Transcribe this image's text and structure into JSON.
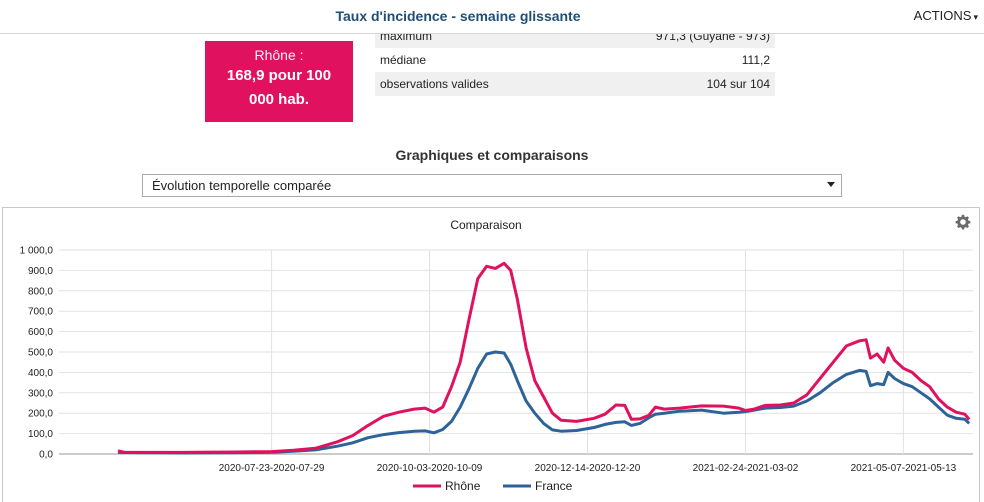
{
  "header": {
    "title": "Taux d'incidence - semaine glissante",
    "actions_label": "ACTIONS"
  },
  "badge": {
    "title": "Rhône :",
    "value_line1": "168,9 pour 100",
    "value_line2": "000 hab."
  },
  "stats": {
    "rows": [
      {
        "label": "maximum",
        "value": "971,3 (Guyane - 973)"
      },
      {
        "label": "médiane",
        "value": "111,2"
      },
      {
        "label": "observations valides",
        "value": "104 sur 104"
      }
    ]
  },
  "section": {
    "title": "Graphiques et comparaisons"
  },
  "selector": {
    "selected": "Évolution temporelle comparée"
  },
  "colors": {
    "accent": "#e0115f",
    "title_blue": "#1f4e79",
    "series_rhone": "#e0115f",
    "series_france": "#2e6399"
  },
  "chart_data": {
    "type": "line",
    "title": "Comparaison",
    "xlabel": "",
    "ylabel": "",
    "ylim": [
      0,
      1000
    ],
    "yticks": [
      "0,0",
      "100,0",
      "200,0",
      "300,0",
      "400,0",
      "500,0",
      "600,0",
      "700,0",
      "800,0",
      "900,0",
      "1 000,0"
    ],
    "xticks": [
      "2020-07-23-2020-07-29",
      "2020-10-03-2020-10-09",
      "2020-12-14-2020-12-20",
      "2021-02-24-2021-03-02",
      "2021-05-07-2021-05-13"
    ],
    "grid": true,
    "legend_position": "bottom",
    "x_start": "2020-05-17",
    "x_end": "2021-05-13",
    "series": [
      {
        "name": "Rhône",
        "points": [
          [
            "2020-05-17",
            15
          ],
          [
            "2020-05-20",
            8
          ],
          [
            "2020-06-15",
            8
          ],
          [
            "2020-07-10",
            10
          ],
          [
            "2020-07-26",
            12
          ],
          [
            "2020-08-05",
            18
          ],
          [
            "2020-08-15",
            28
          ],
          [
            "2020-08-25",
            60
          ],
          [
            "2020-09-01",
            90
          ],
          [
            "2020-09-08",
            140
          ],
          [
            "2020-09-15",
            185
          ],
          [
            "2020-09-22",
            205
          ],
          [
            "2020-09-29",
            220
          ],
          [
            "2020-10-04",
            225
          ],
          [
            "2020-10-08",
            205
          ],
          [
            "2020-10-12",
            230
          ],
          [
            "2020-10-16",
            330
          ],
          [
            "2020-10-20",
            450
          ],
          [
            "2020-10-24",
            660
          ],
          [
            "2020-10-28",
            860
          ],
          [
            "2020-11-01",
            920
          ],
          [
            "2020-11-05",
            910
          ],
          [
            "2020-11-09",
            935
          ],
          [
            "2020-11-12",
            900
          ],
          [
            "2020-11-15",
            760
          ],
          [
            "2020-11-19",
            520
          ],
          [
            "2020-11-23",
            360
          ],
          [
            "2020-11-27",
            280
          ],
          [
            "2020-12-01",
            200
          ],
          [
            "2020-12-05",
            165
          ],
          [
            "2020-12-12",
            160
          ],
          [
            "2020-12-20",
            175
          ],
          [
            "2020-12-25",
            195
          ],
          [
            "2020-12-30",
            240
          ],
          [
            "2021-01-03",
            238
          ],
          [
            "2021-01-06",
            170
          ],
          [
            "2021-01-10",
            172
          ],
          [
            "2021-01-14",
            190
          ],
          [
            "2021-01-17",
            230
          ],
          [
            "2021-01-21",
            220
          ],
          [
            "2021-01-28",
            225
          ],
          [
            "2021-02-07",
            236
          ],
          [
            "2021-02-17",
            235
          ],
          [
            "2021-02-24",
            225
          ],
          [
            "2021-02-27",
            213
          ],
          [
            "2021-03-03",
            220
          ],
          [
            "2021-03-08",
            238
          ],
          [
            "2021-03-15",
            240
          ],
          [
            "2021-03-21",
            250
          ],
          [
            "2021-03-27",
            290
          ],
          [
            "2021-04-02",
            370
          ],
          [
            "2021-04-08",
            450
          ],
          [
            "2021-04-14",
            530
          ],
          [
            "2021-04-20",
            555
          ],
          [
            "2021-04-23",
            560
          ],
          [
            "2021-04-25",
            470
          ],
          [
            "2021-04-28",
            490
          ],
          [
            "2021-05-01",
            450
          ],
          [
            "2021-05-03",
            520
          ],
          [
            "2021-05-06",
            460
          ],
          [
            "2021-05-10",
            420
          ],
          [
            "2021-05-14",
            400
          ],
          [
            "2021-05-18",
            360
          ],
          [
            "2021-05-22",
            330
          ],
          [
            "2021-05-26",
            270
          ],
          [
            "2021-05-30",
            230
          ],
          [
            "2021-06-03",
            205
          ],
          [
            "2021-06-07",
            195
          ],
          [
            "2021-06-09",
            169
          ]
        ]
      },
      {
        "name": "France",
        "points": [
          [
            "2020-05-17",
            8
          ],
          [
            "2020-06-15",
            5
          ],
          [
            "2020-07-10",
            6
          ],
          [
            "2020-07-26",
            9
          ],
          [
            "2020-08-05",
            13
          ],
          [
            "2020-08-15",
            20
          ],
          [
            "2020-08-25",
            38
          ],
          [
            "2020-09-01",
            55
          ],
          [
            "2020-09-08",
            80
          ],
          [
            "2020-09-15",
            95
          ],
          [
            "2020-09-22",
            105
          ],
          [
            "2020-09-29",
            112
          ],
          [
            "2020-10-04",
            113
          ],
          [
            "2020-10-08",
            104
          ],
          [
            "2020-10-12",
            120
          ],
          [
            "2020-10-16",
            160
          ],
          [
            "2020-10-20",
            230
          ],
          [
            "2020-10-24",
            320
          ],
          [
            "2020-10-28",
            420
          ],
          [
            "2020-11-01",
            490
          ],
          [
            "2020-11-05",
            500
          ],
          [
            "2020-11-09",
            495
          ],
          [
            "2020-11-12",
            440
          ],
          [
            "2020-11-15",
            360
          ],
          [
            "2020-11-19",
            260
          ],
          [
            "2020-11-23",
            200
          ],
          [
            "2020-11-27",
            150
          ],
          [
            "2020-12-01",
            118
          ],
          [
            "2020-12-05",
            112
          ],
          [
            "2020-12-12",
            115
          ],
          [
            "2020-12-20",
            130
          ],
          [
            "2020-12-25",
            145
          ],
          [
            "2020-12-30",
            155
          ],
          [
            "2021-01-03",
            158
          ],
          [
            "2021-01-06",
            140
          ],
          [
            "2021-01-10",
            150
          ],
          [
            "2021-01-14",
            178
          ],
          [
            "2021-01-17",
            195
          ],
          [
            "2021-01-21",
            200
          ],
          [
            "2021-01-28",
            210
          ],
          [
            "2021-02-07",
            215
          ],
          [
            "2021-02-17",
            200
          ],
          [
            "2021-02-24",
            205
          ],
          [
            "2021-02-27",
            208
          ],
          [
            "2021-03-03",
            215
          ],
          [
            "2021-03-08",
            225
          ],
          [
            "2021-03-15",
            228
          ],
          [
            "2021-03-21",
            235
          ],
          [
            "2021-03-27",
            260
          ],
          [
            "2021-04-02",
            300
          ],
          [
            "2021-04-08",
            350
          ],
          [
            "2021-04-14",
            390
          ],
          [
            "2021-04-20",
            410
          ],
          [
            "2021-04-23",
            405
          ],
          [
            "2021-04-25",
            335
          ],
          [
            "2021-04-28",
            345
          ],
          [
            "2021-05-01",
            340
          ],
          [
            "2021-05-03",
            400
          ],
          [
            "2021-05-06",
            370
          ],
          [
            "2021-05-10",
            345
          ],
          [
            "2021-05-14",
            330
          ],
          [
            "2021-05-18",
            300
          ],
          [
            "2021-05-22",
            270
          ],
          [
            "2021-05-26",
            230
          ],
          [
            "2021-05-30",
            190
          ],
          [
            "2021-06-03",
            175
          ],
          [
            "2021-06-07",
            170
          ],
          [
            "2021-06-09",
            150
          ]
        ]
      }
    ]
  }
}
